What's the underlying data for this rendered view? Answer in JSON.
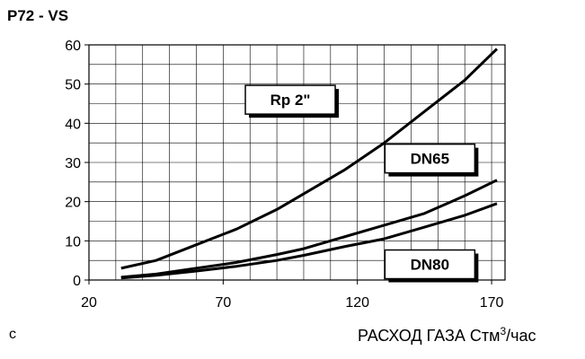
{
  "chart_data": {
    "type": "line",
    "title": "P72 - VS",
    "ylabel_unit": "с",
    "xlabel": {
      "prefix": "РАСХОД ГАЗА Стм",
      "sup": "3",
      "suffix": "/час"
    },
    "xlim": [
      20,
      175
    ],
    "ylim": [
      0,
      60
    ],
    "x_ticks": [
      "20",
      "70",
      "120",
      "170"
    ],
    "x_tick_values": [
      20,
      70,
      120,
      170
    ],
    "y_ticks": [
      "0",
      "10",
      "20",
      "30",
      "40",
      "50",
      "60"
    ],
    "y_tick_values": [
      0,
      10,
      20,
      30,
      40,
      50,
      60
    ],
    "grid": true,
    "series": [
      {
        "name": "Rp 2\"",
        "x": [
          32,
          45,
          60,
          75,
          90,
          100,
          115,
          130,
          145,
          160,
          172
        ],
        "y": [
          3,
          5,
          9,
          13,
          18,
          22,
          28,
          35,
          43,
          51,
          59
        ]
      },
      {
        "name": "DN65",
        "x": [
          32,
          45,
          60,
          75,
          90,
          100,
          115,
          130,
          145,
          160,
          172
        ],
        "y": [
          0.7,
          1.5,
          3,
          4.5,
          6.5,
          8,
          11,
          14,
          17,
          21.5,
          25.5
        ]
      },
      {
        "name": "DN80",
        "x": [
          32,
          45,
          60,
          75,
          90,
          100,
          115,
          130,
          145,
          160,
          172
        ],
        "y": [
          0.5,
          1.2,
          2.3,
          3.5,
          5,
          6.3,
          8.5,
          10.5,
          13.5,
          16.5,
          19.5
        ]
      }
    ]
  }
}
